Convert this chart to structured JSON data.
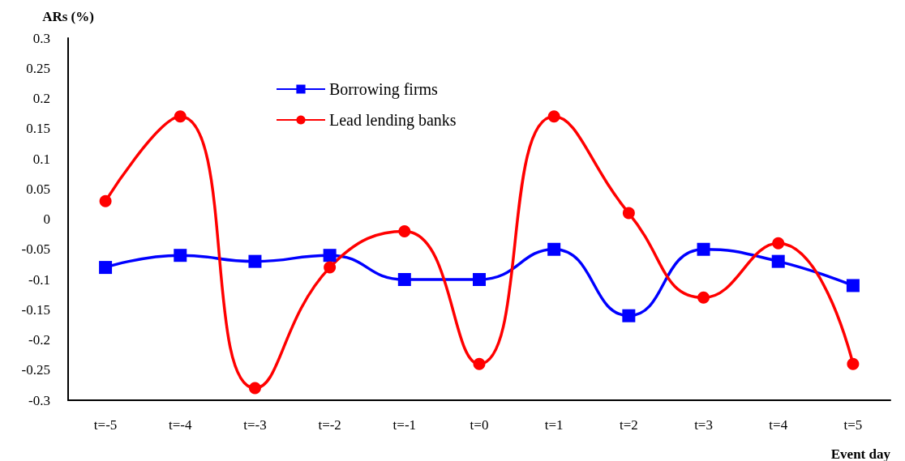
{
  "chart_data": {
    "type": "line",
    "ylabel": "ARs (%)",
    "xlabel": "Event day",
    "categories": [
      "t=-5",
      "t=-4",
      "t=-3",
      "t=-2",
      "t=-1",
      "t=0",
      "t=1",
      "t=2",
      "t=3",
      "t=4",
      "t=5"
    ],
    "series": [
      {
        "name": "Borrowing firms",
        "color": "#0000ff",
        "marker": "square",
        "values": [
          -0.08,
          -0.06,
          -0.07,
          -0.06,
          -0.1,
          -0.1,
          -0.05,
          -0.16,
          -0.05,
          -0.07,
          -0.11
        ]
      },
      {
        "name": "Lead lending banks",
        "color": "#ff0000",
        "marker": "circle",
        "values": [
          0.03,
          0.17,
          -0.28,
          -0.08,
          -0.02,
          -0.24,
          0.17,
          0.01,
          -0.13,
          -0.04,
          -0.24
        ]
      }
    ],
    "ylim": [
      -0.3,
      0.3
    ],
    "yticks": [
      -0.3,
      -0.25,
      -0.2,
      -0.15,
      -0.1,
      -0.05,
      0,
      0.05,
      0.1,
      0.15,
      0.2,
      0.25,
      0.3
    ],
    "grid": false,
    "legend": "top left",
    "line_style": "solid"
  }
}
